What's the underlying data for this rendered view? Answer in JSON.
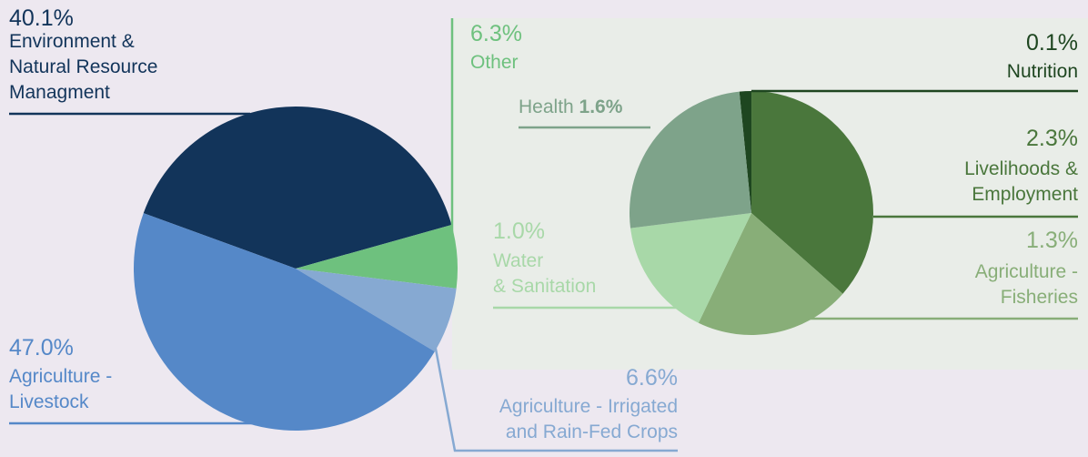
{
  "chart_data": [
    {
      "type": "pie",
      "categories": [
        "Environment &\nNatural Resource\nManagment",
        "Other",
        "Agriculture - Irrigated\nand Rain-Fed Crops",
        "Agriculture -\nLivestock"
      ],
      "values": [
        40.1,
        6.3,
        6.6,
        47.0
      ],
      "value_labels": [
        "40.1%",
        "6.3%",
        "6.6%",
        "47.0%"
      ],
      "colors": [
        "#12345a",
        "#6ec17e",
        "#86a9d2",
        "#5588c8"
      ]
    },
    {
      "type": "pie",
      "categories": [
        "Nutrition",
        "Livelihoods &\nEmployment",
        "Agriculture -\nFisheries",
        "Water\n& Sanitation",
        "Health"
      ],
      "values": [
        0.1,
        2.3,
        1.3,
        1.0,
        1.6
      ],
      "value_labels": [
        "0.1%",
        "2.3%",
        "1.3%",
        "1.0%",
        "1.6%"
      ],
      "colors": [
        "#1e4620",
        "#4a773c",
        "#88ae78",
        "#a8d8a8",
        "#7ea38a"
      ]
    }
  ]
}
